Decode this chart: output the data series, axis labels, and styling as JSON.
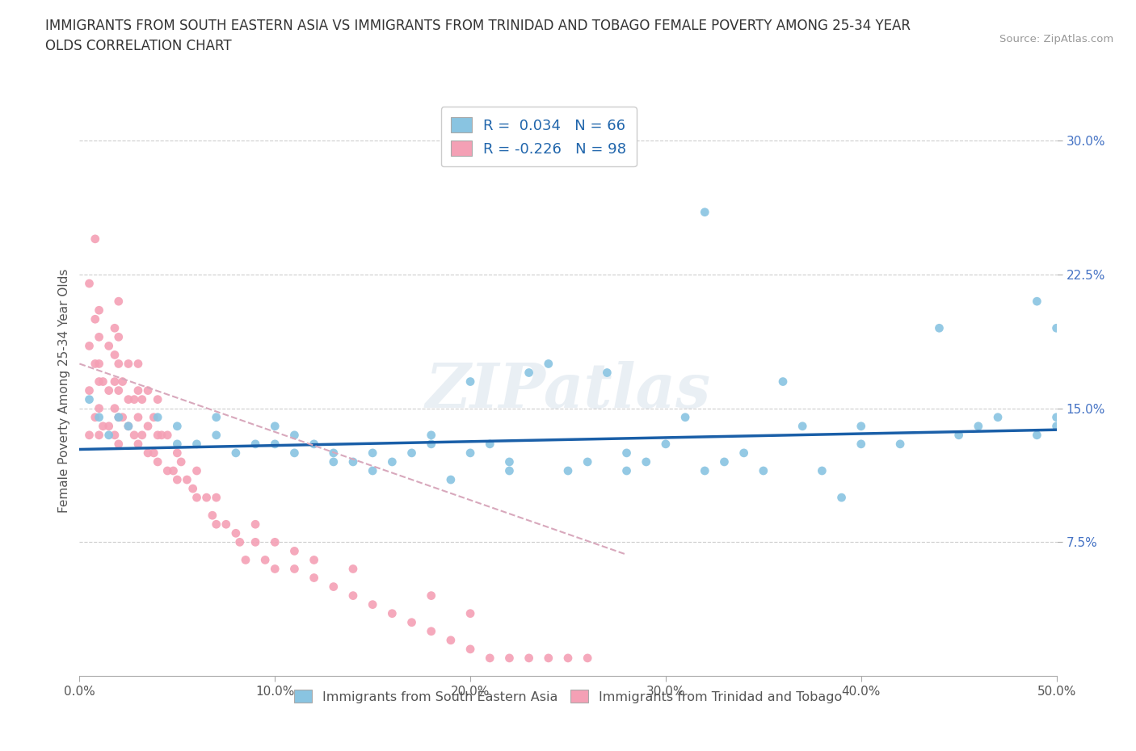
{
  "title": "IMMIGRANTS FROM SOUTH EASTERN ASIA VS IMMIGRANTS FROM TRINIDAD AND TOBAGO FEMALE POVERTY AMONG 25-34 YEAR\nOLDS CORRELATION CHART",
  "source_text": "Source: ZipAtlas.com",
  "ylabel": "Female Poverty Among 25-34 Year Olds",
  "xlim": [
    0.0,
    0.5
  ],
  "ylim": [
    0.0,
    0.32
  ],
  "xticks": [
    0.0,
    0.1,
    0.2,
    0.3,
    0.4,
    0.5
  ],
  "xticklabels": [
    "0.0%",
    "10.0%",
    "20.0%",
    "30.0%",
    "40.0%",
    "50.0%"
  ],
  "yticks": [
    0.075,
    0.15,
    0.225,
    0.3
  ],
  "yticklabels": [
    "7.5%",
    "15.0%",
    "22.5%",
    "30.0%"
  ],
  "legend1_label": "R =  0.034   N = 66",
  "legend2_label": "R = -0.226   N = 98",
  "legend_label1": "Immigrants from South Eastern Asia",
  "legend_label2": "Immigrants from Trinidad and Tobago",
  "color_blue": "#89c4e1",
  "color_pink": "#f4a0b5",
  "color_blue_line": "#1a5fa8",
  "color_pink_line": "#d8a8bc",
  "watermark": "ZIPatlas",
  "blue_scatter_x": [
    0.005,
    0.01,
    0.015,
    0.02,
    0.025,
    0.04,
    0.05,
    0.05,
    0.06,
    0.07,
    0.07,
    0.08,
    0.09,
    0.1,
    0.1,
    0.11,
    0.11,
    0.12,
    0.13,
    0.13,
    0.14,
    0.15,
    0.15,
    0.16,
    0.17,
    0.18,
    0.18,
    0.19,
    0.2,
    0.21,
    0.22,
    0.22,
    0.23,
    0.24,
    0.25,
    0.26,
    0.27,
    0.28,
    0.28,
    0.29,
    0.3,
    0.31,
    0.32,
    0.33,
    0.34,
    0.35,
    0.36,
    0.37,
    0.38,
    0.39,
    0.4,
    0.4,
    0.42,
    0.44,
    0.45,
    0.46,
    0.47,
    0.49,
    0.49,
    0.5,
    0.5,
    0.5,
    0.2,
    0.32
  ],
  "blue_scatter_y": [
    0.155,
    0.145,
    0.135,
    0.145,
    0.14,
    0.145,
    0.14,
    0.13,
    0.13,
    0.135,
    0.145,
    0.125,
    0.13,
    0.13,
    0.14,
    0.125,
    0.135,
    0.13,
    0.12,
    0.125,
    0.12,
    0.115,
    0.125,
    0.12,
    0.125,
    0.13,
    0.135,
    0.11,
    0.125,
    0.13,
    0.115,
    0.12,
    0.17,
    0.175,
    0.115,
    0.12,
    0.17,
    0.115,
    0.125,
    0.12,
    0.13,
    0.145,
    0.115,
    0.12,
    0.125,
    0.115,
    0.165,
    0.14,
    0.115,
    0.1,
    0.13,
    0.14,
    0.13,
    0.195,
    0.135,
    0.14,
    0.145,
    0.21,
    0.135,
    0.195,
    0.145,
    0.14,
    0.165,
    0.26
  ],
  "pink_scatter_x": [
    0.005,
    0.005,
    0.005,
    0.008,
    0.008,
    0.008,
    0.01,
    0.01,
    0.01,
    0.01,
    0.01,
    0.01,
    0.012,
    0.012,
    0.015,
    0.015,
    0.015,
    0.018,
    0.018,
    0.018,
    0.018,
    0.018,
    0.02,
    0.02,
    0.02,
    0.02,
    0.02,
    0.02,
    0.022,
    0.022,
    0.025,
    0.025,
    0.025,
    0.028,
    0.028,
    0.03,
    0.03,
    0.03,
    0.03,
    0.032,
    0.032,
    0.035,
    0.035,
    0.035,
    0.038,
    0.038,
    0.04,
    0.04,
    0.04,
    0.042,
    0.045,
    0.045,
    0.048,
    0.05,
    0.05,
    0.052,
    0.055,
    0.058,
    0.06,
    0.06,
    0.065,
    0.068,
    0.07,
    0.07,
    0.075,
    0.08,
    0.082,
    0.085,
    0.09,
    0.09,
    0.095,
    0.1,
    0.1,
    0.11,
    0.11,
    0.12,
    0.12,
    0.13,
    0.14,
    0.14,
    0.15,
    0.16,
    0.17,
    0.18,
    0.18,
    0.19,
    0.2,
    0.2,
    0.21,
    0.22,
    0.23,
    0.24,
    0.25,
    0.26,
    0.005,
    0.008
  ],
  "pink_scatter_y": [
    0.135,
    0.16,
    0.185,
    0.145,
    0.175,
    0.2,
    0.135,
    0.15,
    0.165,
    0.175,
    0.19,
    0.205,
    0.14,
    0.165,
    0.14,
    0.16,
    0.185,
    0.135,
    0.15,
    0.165,
    0.18,
    0.195,
    0.13,
    0.145,
    0.16,
    0.175,
    0.19,
    0.21,
    0.145,
    0.165,
    0.14,
    0.155,
    0.175,
    0.135,
    0.155,
    0.13,
    0.145,
    0.16,
    0.175,
    0.135,
    0.155,
    0.125,
    0.14,
    0.16,
    0.125,
    0.145,
    0.12,
    0.135,
    0.155,
    0.135,
    0.115,
    0.135,
    0.115,
    0.11,
    0.125,
    0.12,
    0.11,
    0.105,
    0.1,
    0.115,
    0.1,
    0.09,
    0.085,
    0.1,
    0.085,
    0.08,
    0.075,
    0.065,
    0.075,
    0.085,
    0.065,
    0.06,
    0.075,
    0.06,
    0.07,
    0.055,
    0.065,
    0.05,
    0.045,
    0.06,
    0.04,
    0.035,
    0.03,
    0.025,
    0.045,
    0.02,
    0.015,
    0.035,
    0.01,
    0.01,
    0.01,
    0.01,
    0.01,
    0.01,
    0.22,
    0.245
  ],
  "blue_trend_x": [
    0.0,
    0.5
  ],
  "blue_trend_y_start": 0.127,
  "blue_trend_y_end": 0.138,
  "pink_trend_x": [
    0.0,
    0.28
  ],
  "pink_trend_y_start": 0.175,
  "pink_trend_y_end": 0.068
}
